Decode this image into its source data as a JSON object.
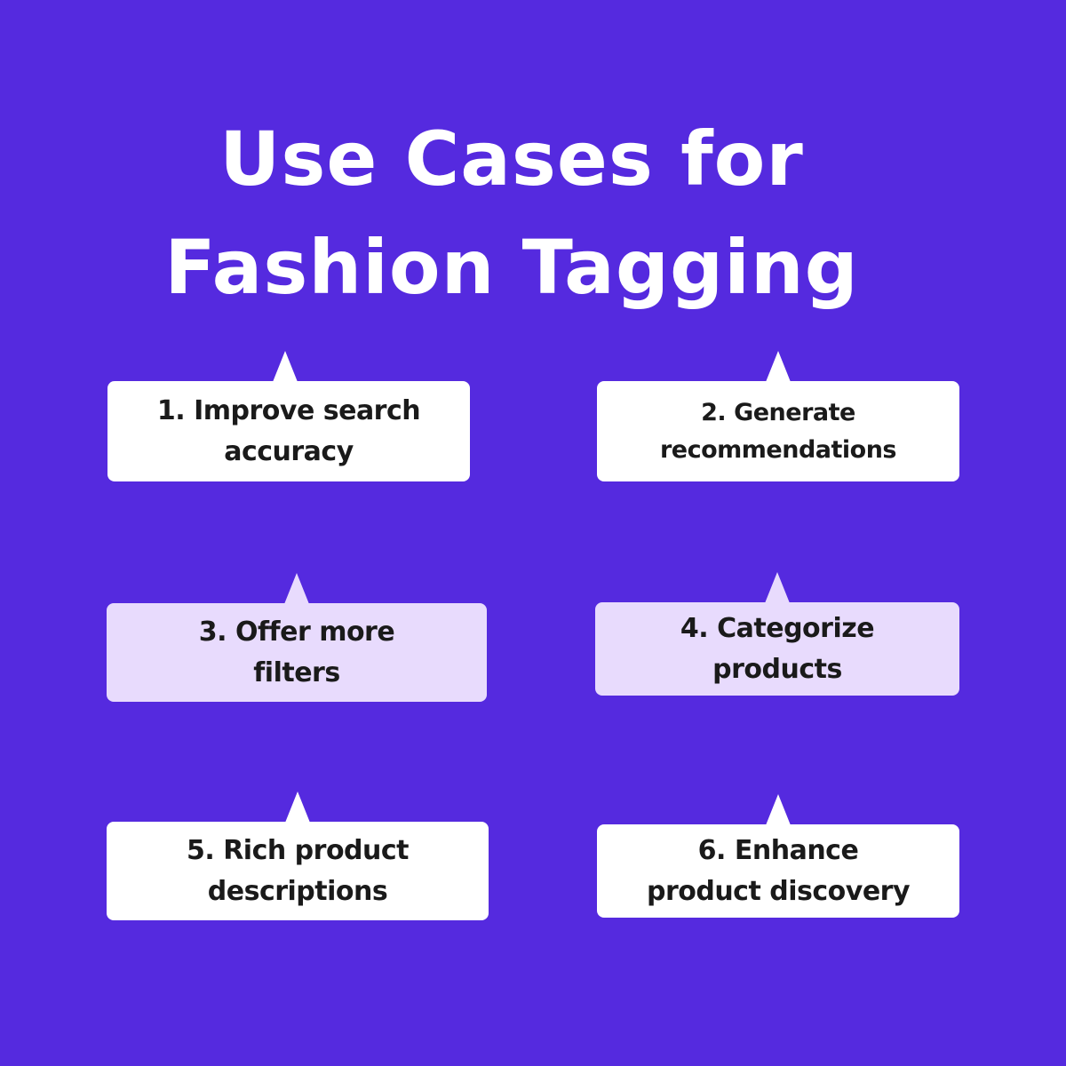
{
  "title": {
    "line1": "Use Cases for",
    "line2": "Fashion Tagging"
  },
  "cards": [
    {
      "line1": "1. Improve search",
      "line2": "accuracy"
    },
    {
      "line1": "2. Generate",
      "line2": "recommendations"
    },
    {
      "line1": "3. Offer more",
      "line2": "filters"
    },
    {
      "line1": "4. Categorize",
      "line2": "products"
    },
    {
      "line1": "5. Rich product",
      "line2": "descriptions"
    },
    {
      "line1": "6. Enhance",
      "line2": "product discovery"
    }
  ],
  "colors": {
    "background": "#552adf",
    "card_white": "#ffffff",
    "card_lilac": "#e8dbfd",
    "text_dark": "#1a1a1a",
    "title_text": "#ffffff"
  }
}
